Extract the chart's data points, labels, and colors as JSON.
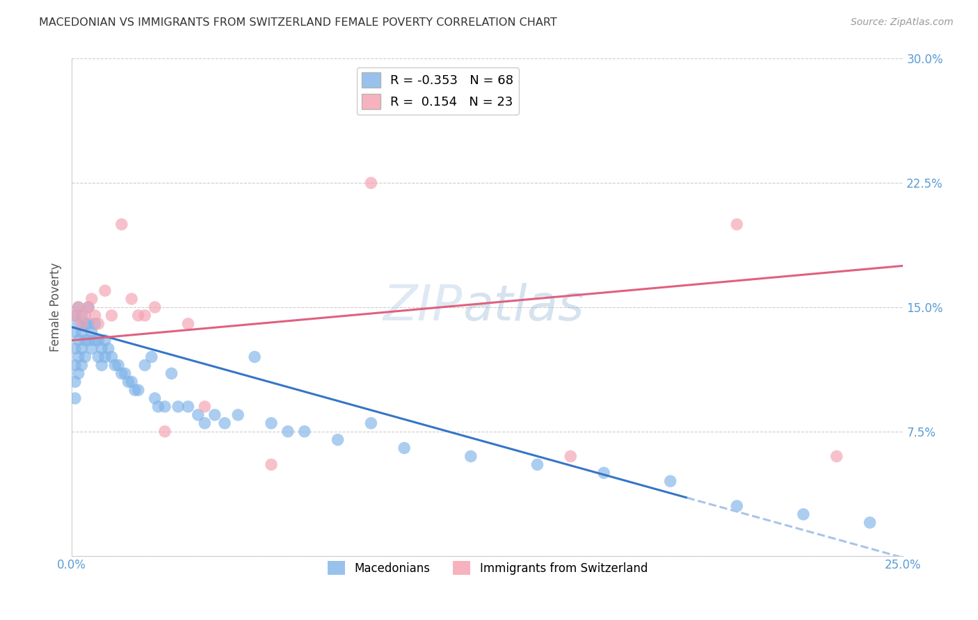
{
  "title": "MACEDONIAN VS IMMIGRANTS FROM SWITZERLAND FEMALE POVERTY CORRELATION CHART",
  "source": "Source: ZipAtlas.com",
  "ylabel": "Female Poverty",
  "xlim": [
    0.0,
    0.25
  ],
  "ylim": [
    0.0,
    0.3
  ],
  "xticks": [
    0.0,
    0.05,
    0.1,
    0.15,
    0.2,
    0.25
  ],
  "xticklabels": [
    "0.0%",
    "",
    "",
    "",
    "",
    "25.0%"
  ],
  "yticks": [
    0.0,
    0.075,
    0.15,
    0.225,
    0.3
  ],
  "yticklabels": [
    "",
    "7.5%",
    "15.0%",
    "22.5%",
    "30.0%"
  ],
  "macedonian_color": "#7fb3e8",
  "swiss_color": "#f4a0b0",
  "macedonian_R": -0.353,
  "macedonian_N": 68,
  "swiss_R": 0.154,
  "swiss_N": 23,
  "legend_macedonians": "Macedonians",
  "legend_swiss": "Immigrants from Switzerland",
  "mac_line_x0": 0.0,
  "mac_line_y0": 0.138,
  "mac_line_x1": 0.185,
  "mac_line_y1": 0.035,
  "mac_line_xdash_x0": 0.185,
  "mac_line_xdash_x1": 0.255,
  "sw_line_x0": 0.0,
  "sw_line_y0": 0.13,
  "sw_line_x1": 0.25,
  "sw_line_y1": 0.175,
  "macedonian_x": [
    0.001,
    0.001,
    0.001,
    0.001,
    0.001,
    0.001,
    0.002,
    0.002,
    0.002,
    0.002,
    0.002,
    0.003,
    0.003,
    0.003,
    0.003,
    0.004,
    0.004,
    0.004,
    0.005,
    0.005,
    0.005,
    0.006,
    0.006,
    0.007,
    0.007,
    0.008,
    0.008,
    0.009,
    0.009,
    0.01,
    0.01,
    0.011,
    0.012,
    0.013,
    0.014,
    0.015,
    0.016,
    0.017,
    0.018,
    0.019,
    0.02,
    0.022,
    0.024,
    0.025,
    0.026,
    0.028,
    0.03,
    0.032,
    0.035,
    0.038,
    0.04,
    0.043,
    0.046,
    0.05,
    0.055,
    0.06,
    0.065,
    0.07,
    0.08,
    0.09,
    0.1,
    0.12,
    0.14,
    0.16,
    0.18,
    0.2,
    0.22,
    0.24
  ],
  "macedonian_y": [
    0.145,
    0.135,
    0.125,
    0.115,
    0.105,
    0.095,
    0.15,
    0.14,
    0.13,
    0.12,
    0.11,
    0.145,
    0.135,
    0.125,
    0.115,
    0.14,
    0.13,
    0.12,
    0.15,
    0.14,
    0.13,
    0.135,
    0.125,
    0.14,
    0.13,
    0.13,
    0.12,
    0.125,
    0.115,
    0.13,
    0.12,
    0.125,
    0.12,
    0.115,
    0.115,
    0.11,
    0.11,
    0.105,
    0.105,
    0.1,
    0.1,
    0.115,
    0.12,
    0.095,
    0.09,
    0.09,
    0.11,
    0.09,
    0.09,
    0.085,
    0.08,
    0.085,
    0.08,
    0.085,
    0.12,
    0.08,
    0.075,
    0.075,
    0.07,
    0.08,
    0.065,
    0.06,
    0.055,
    0.05,
    0.045,
    0.03,
    0.025,
    0.02
  ],
  "swiss_x": [
    0.001,
    0.002,
    0.003,
    0.004,
    0.005,
    0.006,
    0.007,
    0.008,
    0.01,
    0.012,
    0.015,
    0.018,
    0.02,
    0.022,
    0.025,
    0.028,
    0.035,
    0.04,
    0.06,
    0.09,
    0.15,
    0.2,
    0.23
  ],
  "swiss_y": [
    0.145,
    0.15,
    0.14,
    0.145,
    0.15,
    0.155,
    0.145,
    0.14,
    0.16,
    0.145,
    0.2,
    0.155,
    0.145,
    0.145,
    0.15,
    0.075,
    0.14,
    0.09,
    0.055,
    0.225,
    0.06,
    0.2,
    0.06
  ]
}
